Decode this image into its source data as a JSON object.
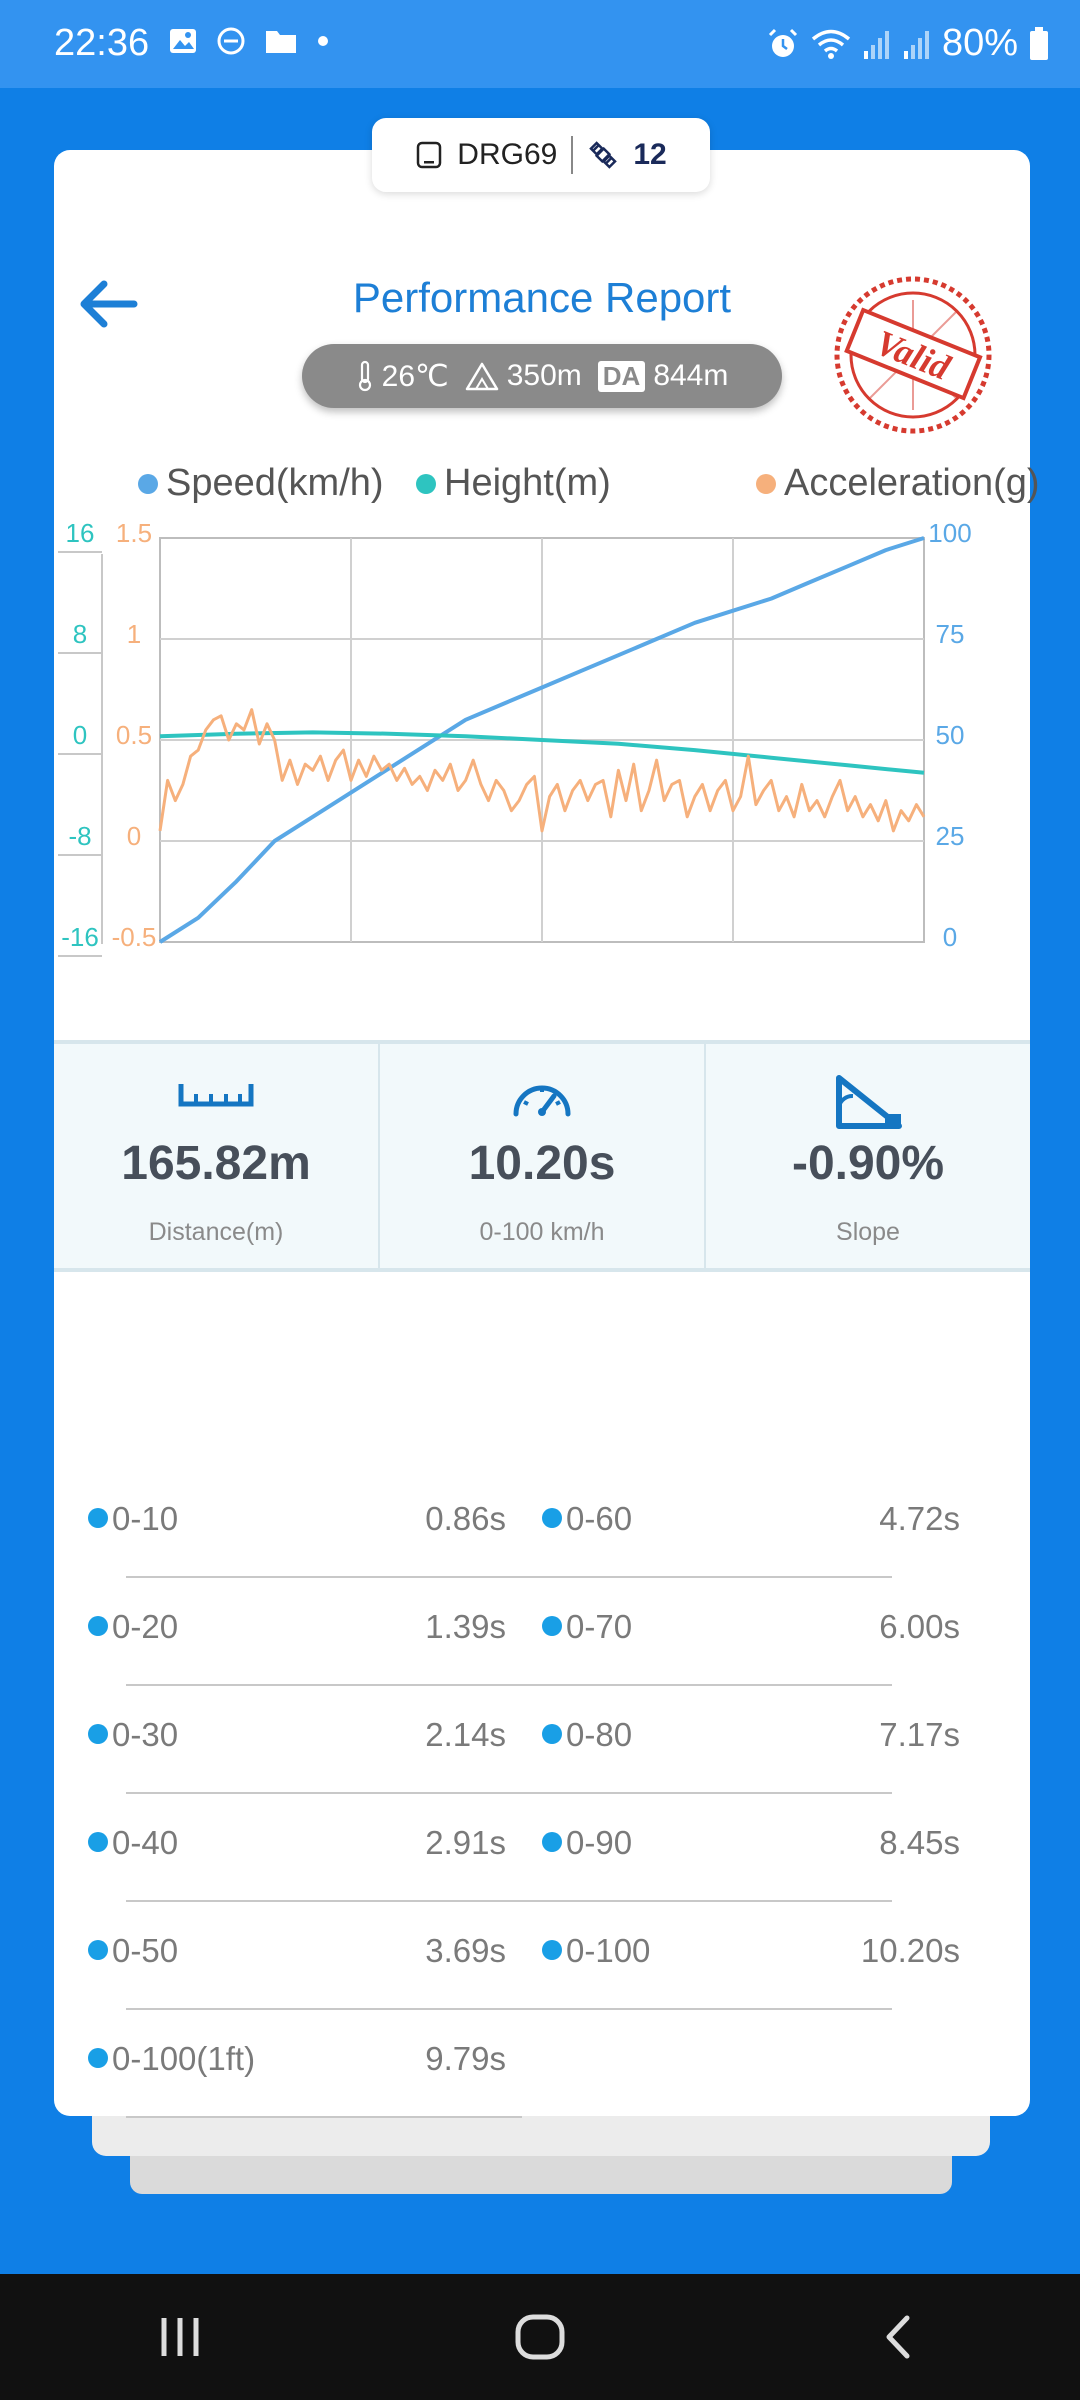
{
  "status_bar": {
    "time": "22:36",
    "battery": "80%",
    "icons": [
      "image-icon",
      "dnd-icon",
      "folder-icon",
      "dot-icon",
      "alarm-icon",
      "wifi-icon",
      "signal-icon",
      "signal-icon",
      "battery-icon"
    ]
  },
  "device": {
    "name": "DRG69",
    "satellites": "12"
  },
  "header": {
    "title": "Performance Report",
    "stamp_text": "Valid",
    "stamp_color": "#d63a2f"
  },
  "environment": {
    "temperature": "26℃",
    "altitude": "350m",
    "da_label": "DA",
    "density_altitude": "844m"
  },
  "legend": [
    {
      "label": "Speed(km/h)",
      "color": "#5aa8e6"
    },
    {
      "label": "Height(m)",
      "color": "#2ec4c0"
    },
    {
      "label": "Acceleration(g)",
      "color": "#f6b07c"
    }
  ],
  "chart_data": {
    "type": "line",
    "x_range": [
      0,
      100
    ],
    "grid": true,
    "axes": {
      "height_ticks": [
        "16",
        "8",
        "0",
        "-8",
        "-16"
      ],
      "accel_ticks": [
        "1.5",
        "1",
        "0.5",
        "0",
        "-0.5"
      ],
      "speed_ticks": [
        "100",
        "75",
        "50",
        "25",
        "0"
      ]
    },
    "series": [
      {
        "name": "Speed(km/h)",
        "axis": "speed",
        "color": "#5aa8e6",
        "range": [
          0,
          100
        ],
        "x": [
          0,
          5,
          10,
          15,
          20,
          25,
          30,
          35,
          40,
          45,
          50,
          55,
          60,
          65,
          70,
          75,
          80,
          85,
          90,
          95,
          100
        ],
        "y": [
          0,
          6,
          15,
          25,
          31,
          37,
          43,
          49,
          55,
          59,
          63,
          67,
          71,
          75,
          79,
          82,
          85,
          89,
          93,
          97,
          100
        ]
      },
      {
        "name": "Height(m)",
        "axis": "height",
        "color": "#2ec4c0",
        "range": [
          -16,
          16
        ],
        "x": [
          0,
          10,
          20,
          30,
          40,
          50,
          60,
          70,
          80,
          90,
          100
        ],
        "y": [
          0.3,
          0.5,
          0.6,
          0.5,
          0.3,
          0,
          -0.3,
          -0.8,
          -1.4,
          -2.0,
          -2.6
        ]
      },
      {
        "name": "Acceleration(g)",
        "axis": "accel",
        "color": "#f6b07c",
        "range": [
          -0.5,
          1.5
        ],
        "x": [
          0,
          1,
          2,
          3,
          4,
          5,
          6,
          7,
          8,
          9,
          10,
          11,
          12,
          13,
          14,
          15,
          16,
          17,
          18,
          19,
          20,
          21,
          22,
          23,
          24,
          25,
          26,
          27,
          28,
          29,
          30,
          31,
          32,
          33,
          34,
          35,
          36,
          37,
          38,
          39,
          40,
          41,
          42,
          43,
          44,
          45,
          46,
          47,
          48,
          49,
          50,
          51,
          52,
          53,
          54,
          55,
          56,
          57,
          58,
          59,
          60,
          61,
          62,
          63,
          64,
          65,
          66,
          67,
          68,
          69,
          70,
          71,
          72,
          73,
          74,
          75,
          76,
          77,
          78,
          79,
          80,
          81,
          82,
          83,
          84,
          85,
          86,
          87,
          88,
          89,
          90,
          91,
          92,
          93,
          94,
          95,
          96,
          97,
          98,
          99,
          100
        ],
        "y": [
          0.05,
          0.3,
          0.2,
          0.28,
          0.42,
          0.45,
          0.55,
          0.6,
          0.62,
          0.5,
          0.58,
          0.55,
          0.65,
          0.48,
          0.58,
          0.5,
          0.3,
          0.4,
          0.28,
          0.38,
          0.35,
          0.42,
          0.3,
          0.4,
          0.45,
          0.3,
          0.4,
          0.32,
          0.42,
          0.35,
          0.38,
          0.3,
          0.36,
          0.28,
          0.32,
          0.25,
          0.35,
          0.3,
          0.38,
          0.25,
          0.3,
          0.4,
          0.28,
          0.2,
          0.3,
          0.25,
          0.15,
          0.2,
          0.28,
          0.32,
          0.05,
          0.22,
          0.28,
          0.15,
          0.25,
          0.3,
          0.2,
          0.28,
          0.3,
          0.12,
          0.35,
          0.2,
          0.38,
          0.15,
          0.25,
          0.4,
          0.2,
          0.28,
          0.3,
          0.12,
          0.22,
          0.28,
          0.15,
          0.25,
          0.3,
          0.15,
          0.22,
          0.42,
          0.18,
          0.25,
          0.3,
          0.15,
          0.22,
          0.12,
          0.28,
          0.15,
          0.2,
          0.12,
          0.22,
          0.3,
          0.15,
          0.22,
          0.12,
          0.18,
          0.1,
          0.2,
          0.05,
          0.15,
          0.1,
          0.18,
          0.12
        ]
      }
    ]
  },
  "stats": [
    {
      "icon": "ruler-icon",
      "value": "165.82m",
      "label": "Distance(m)"
    },
    {
      "icon": "speedometer-icon",
      "value": "10.20s",
      "label": "0-100 km/h"
    },
    {
      "icon": "slope-icon",
      "value": "-0.90%",
      "label": "Slope"
    }
  ],
  "splits_left": [
    {
      "label": "0-10",
      "value": "0.86s"
    },
    {
      "label": "0-20",
      "value": "1.39s"
    },
    {
      "label": "0-30",
      "value": "2.14s"
    },
    {
      "label": "0-40",
      "value": "2.91s"
    },
    {
      "label": "0-50",
      "value": "3.69s"
    },
    {
      "label": "0-100(1ft)",
      "value": "9.79s"
    }
  ],
  "splits_right": [
    {
      "label": "0-60",
      "value": "4.72s"
    },
    {
      "label": "0-70",
      "value": "6.00s"
    },
    {
      "label": "0-80",
      "value": "7.17s"
    },
    {
      "label": "0-90",
      "value": "8.45s"
    },
    {
      "label": "0-100",
      "value": "10.20s"
    }
  ],
  "nav": [
    "recents-icon",
    "home-icon",
    "back-icon"
  ]
}
